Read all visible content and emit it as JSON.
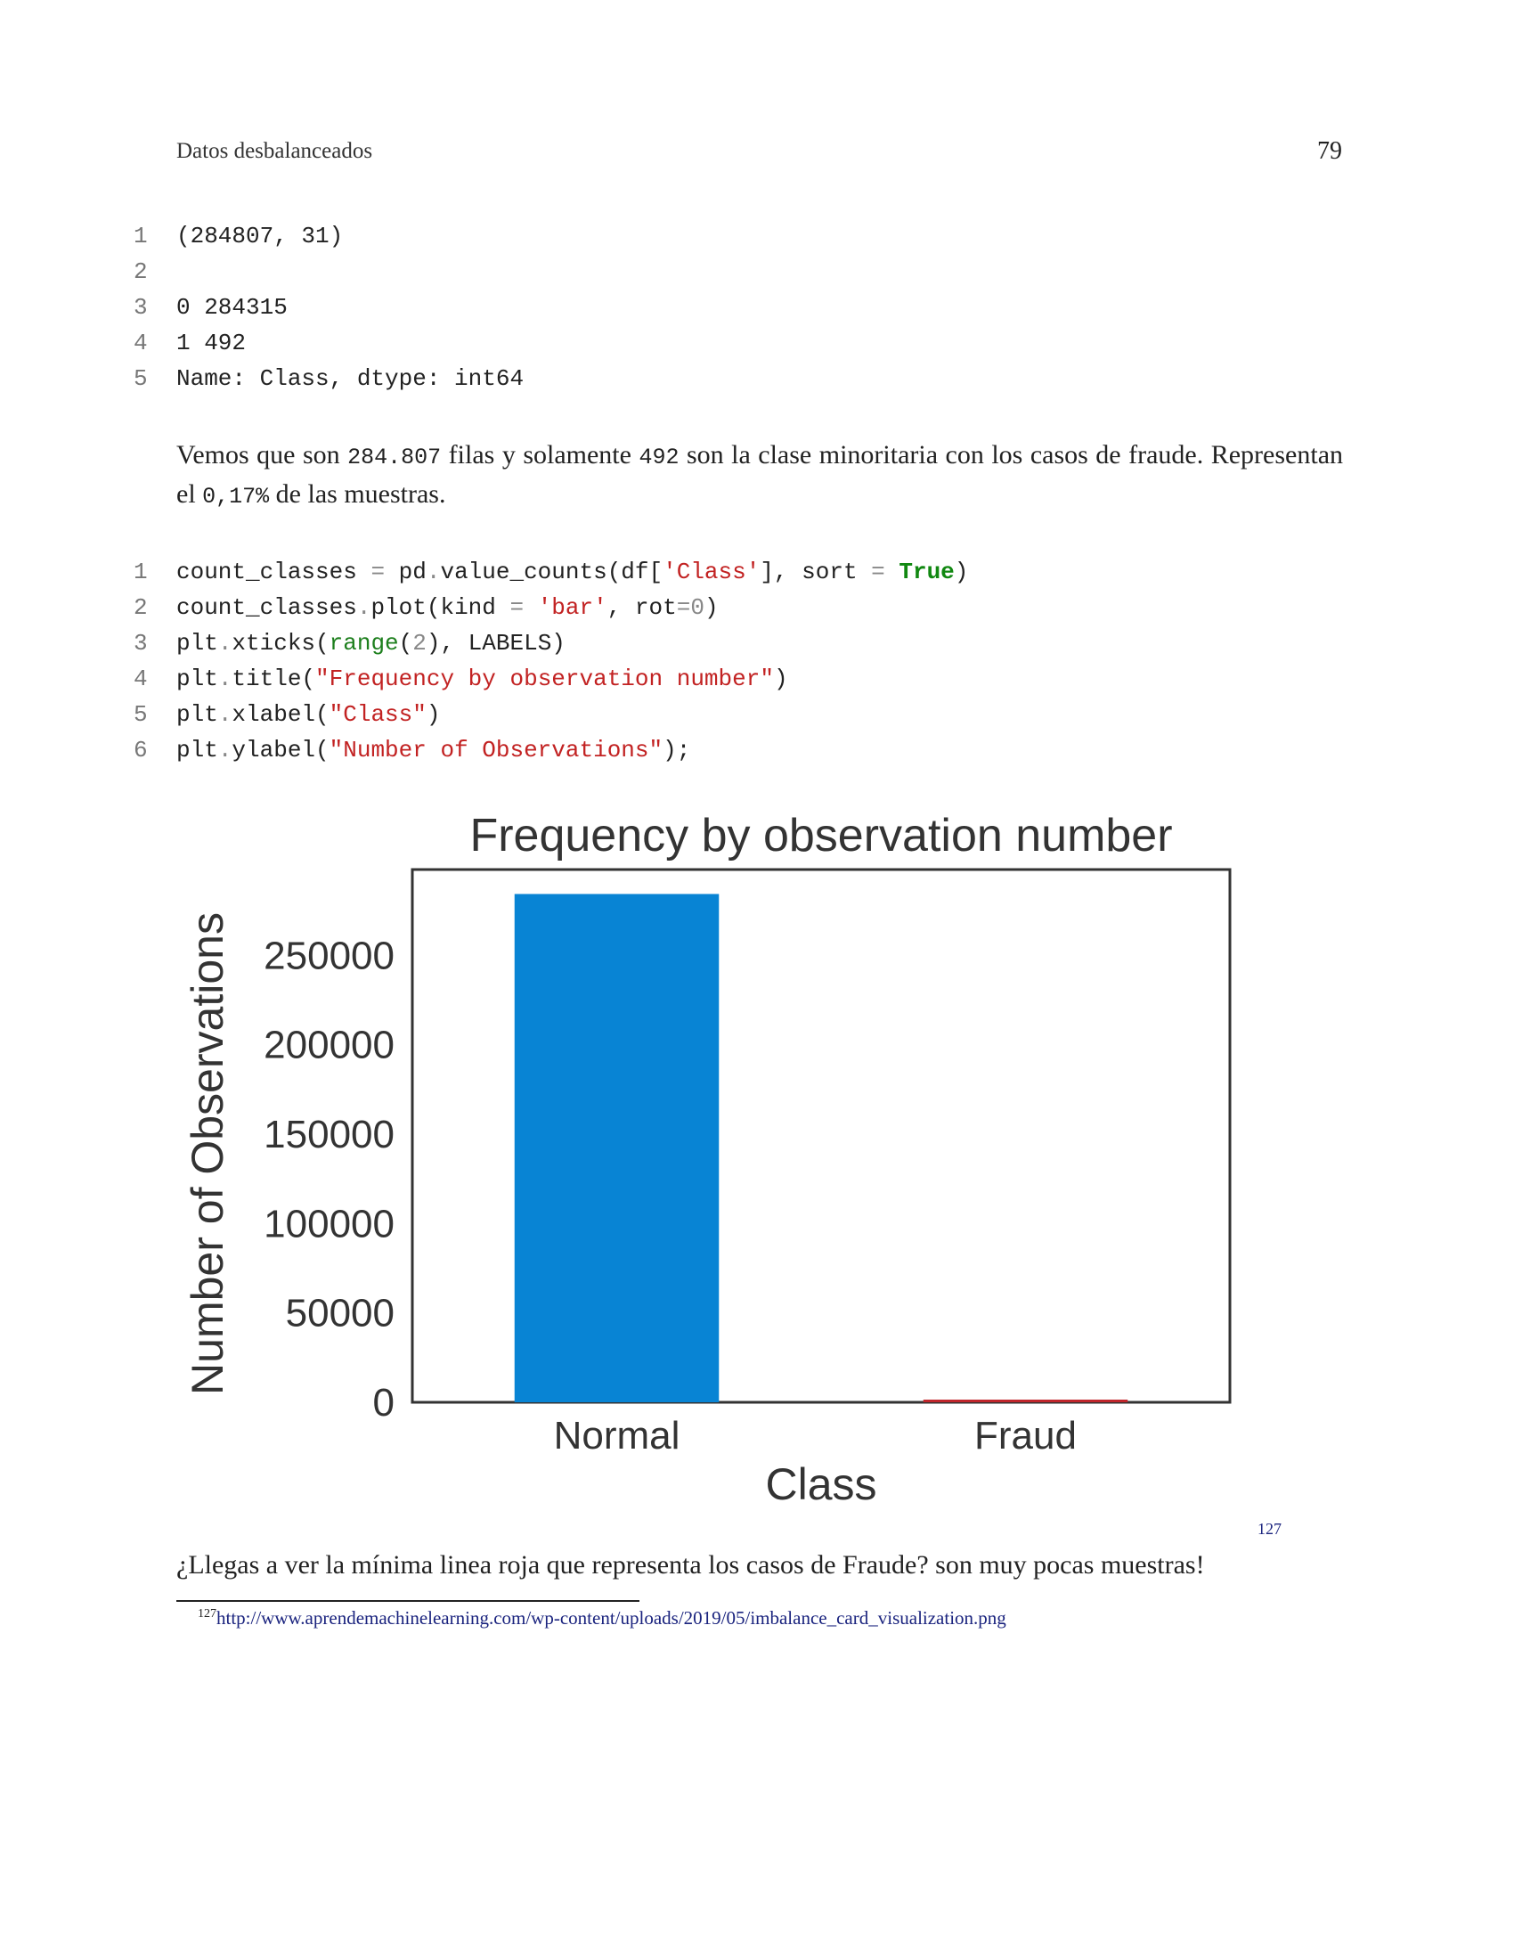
{
  "header": {
    "title": "Datos desbalanceados",
    "page_number": "79"
  },
  "output_block": {
    "lines": [
      {
        "n": "1",
        "text": "(284807, 31)"
      },
      {
        "n": "2",
        "text": ""
      },
      {
        "n": "3",
        "text": "0 284315"
      },
      {
        "n": "4",
        "text": "1 492"
      },
      {
        "n": "5",
        "text": "Name: Class, dtype: int64"
      }
    ]
  },
  "paragraph": {
    "part1": "Vemos que son ",
    "num1": "284.807",
    "part2": " filas y solamente ",
    "num2": "492",
    "part3": " son la clase minoritaria con los casos de fraude. Representan el ",
    "num3": "0,17%",
    "part4": " de las muestras."
  },
  "code_block": {
    "line_numbers": [
      "1",
      "2",
      "3",
      "4",
      "5",
      "6"
    ],
    "l1": {
      "a": "count_classes ",
      "b": "=",
      "c": " pd",
      "d": ".",
      "e": "value_counts(df[",
      "f": "'Class'",
      "g": "], sort ",
      "h": "=",
      "i": " ",
      "j": "True",
      "k": ")"
    },
    "l2": {
      "a": "count_classes",
      "b": ".",
      "c": "plot(kind ",
      "d": "=",
      "e": " ",
      "f": "'bar'",
      "g": ", rot",
      "h": "=",
      "i": "0",
      "j": ")"
    },
    "l3": {
      "a": "plt",
      "b": ".",
      "c": "xticks(",
      "d": "range",
      "e": "(",
      "f": "2",
      "g": "), LABELS)"
    },
    "l4": {
      "a": "plt",
      "b": ".",
      "c": "title(",
      "d": "\"Frequency by observation number\"",
      "e": ")"
    },
    "l5": {
      "a": "plt",
      "b": ".",
      "c": "xlabel(",
      "d": "\"Class\"",
      "e": ")"
    },
    "l6": {
      "a": "plt",
      "b": ".",
      "c": "ylabel(",
      "d": "\"Number of Observations\"",
      "e": ");"
    }
  },
  "chart_data": {
    "type": "bar",
    "title": "Frequency by observation number",
    "xlabel": "Class",
    "ylabel": "Number of Observations",
    "categories": [
      "Normal",
      "Fraud"
    ],
    "values": [
      284315,
      492
    ],
    "colors": [
      "#0884d4",
      "#c0262c"
    ],
    "ylim": [
      0,
      298000
    ],
    "yticks": [
      0,
      50000,
      100000,
      150000,
      200000,
      250000
    ],
    "grid": false
  },
  "footnote_marker": "127",
  "caption": "¿Llegas a ver la mínima linea roja que representa los casos de Fraude? son muy pocas muestras!",
  "footnote": {
    "number": "127",
    "url": "http://www.aprendemachinelearning.com/wp-content/uploads/2019/05/imbalance_card_visualization.png"
  }
}
